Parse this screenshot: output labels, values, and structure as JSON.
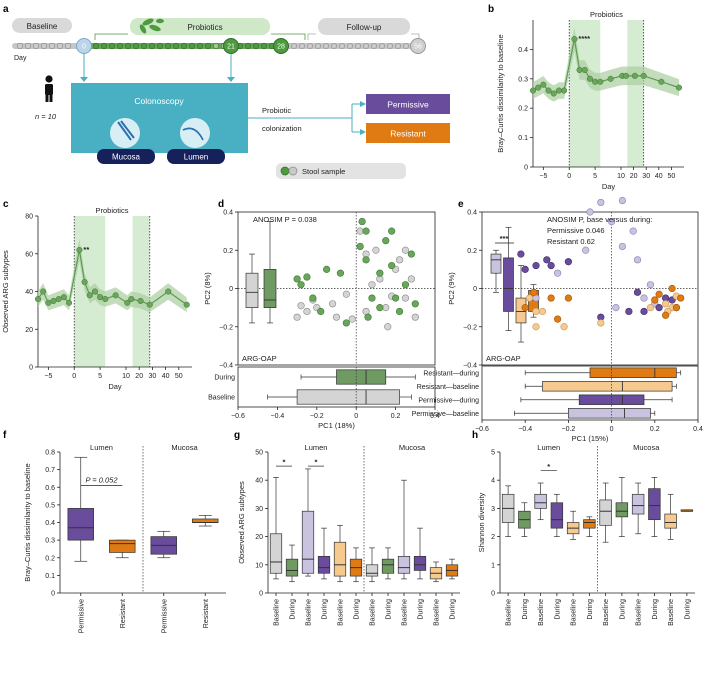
{
  "colors": {
    "baseline_gray": "#d5d5d5",
    "during_green": "#6f9a62",
    "probiotic_green": "#4d9a3f",
    "shade_green": "#d6ecd2",
    "permissive_light": "#c9c3df",
    "permissive": "#6a4c9c",
    "resistant_light": "#f6c98e",
    "resistant": "#e07b14",
    "colonoscopy_teal": "#49b0c3",
    "navy": "#16205b"
  },
  "panel_a": {
    "label": "a",
    "baseline_label": "Baseline",
    "probiotics_label": "Probiotics",
    "followup_label": "Follow-up",
    "day_label": "Day",
    "day_markers": [
      "0",
      "21",
      "28",
      "56"
    ],
    "n_label": "n = 10",
    "colonoscopy_label": "Colonoscopy",
    "mucosa_label": "Mucosa",
    "lumen_label": "Lumen",
    "probiotic_colonization_line1": "Probiotic",
    "probiotic_colonization_line2": "colonization",
    "permissive_label": "Permissive",
    "resistant_label": "Resistant",
    "stool_sample_label": "Stool sample"
  },
  "chart_data": [
    {
      "panel": "b",
      "type": "line",
      "title": "Probiotics",
      "xlabel": "Day",
      "ylabel": "Bray–Curtis dissimilarity to baseline",
      "x_ticks": [
        "−5",
        "0",
        "5",
        "10",
        "20",
        "30",
        "40",
        "50"
      ],
      "y_ticks": [
        "0",
        "0.1",
        "0.2",
        "0.3",
        "0.4"
      ],
      "ylim": [
        0,
        0.5
      ],
      "x": [
        -7,
        -6,
        -5,
        -4,
        -3,
        -2,
        -1,
        1,
        2,
        3,
        4,
        5,
        6,
        8,
        11,
        14,
        21,
        28,
        42,
        56
      ],
      "y": [
        0.26,
        0.27,
        0.28,
        0.26,
        0.25,
        0.26,
        0.26,
        0.435,
        0.33,
        0.33,
        0.3,
        0.29,
        0.29,
        0.3,
        0.31,
        0.31,
        0.31,
        0.31,
        0.29,
        0.27
      ],
      "significance": "****"
    },
    {
      "panel": "c",
      "type": "line",
      "title": "Probiotics",
      "xlabel": "Day",
      "ylabel": "Observed ARG subtypes",
      "x_ticks": [
        "−5",
        "0",
        "5",
        "10",
        "20",
        "30",
        "40",
        "50"
      ],
      "y_ticks": [
        "0",
        "20",
        "40",
        "60",
        "80"
      ],
      "ylim": [
        0,
        80
      ],
      "x": [
        -7,
        -6,
        -5,
        -4,
        -3,
        -2,
        -1,
        1,
        2,
        3,
        4,
        5,
        6,
        8,
        11,
        14,
        21,
        28,
        42,
        56
      ],
      "y": [
        36,
        40,
        34,
        35,
        36,
        37,
        34,
        62,
        45,
        38,
        40,
        37,
        36,
        38,
        34,
        36,
        35,
        33,
        40,
        33
      ],
      "significance": "**"
    },
    {
      "panel": "d",
      "type": "scatter",
      "annotation": "ANOSIM P = 0.038",
      "method_label": "ARG-OAP",
      "xlabel": "PC1 (18%)",
      "ylabel": "PC2 (8%)",
      "x_ticks": [
        "−0.6",
        "−0.4",
        "−0.2",
        "0",
        "0.2",
        "0.4"
      ],
      "y_ticks": [
        "−0.4",
        "−0.2",
        "0",
        "0.2",
        "0.4"
      ],
      "xlim": [
        -0.6,
        0.4
      ],
      "ylim": [
        -0.4,
        0.4
      ],
      "box_categories": [
        "During",
        "Baseline"
      ],
      "series": [
        {
          "name": "Baseline",
          "points": [
            [
              -0.28,
              -0.09
            ],
            [
              -0.25,
              -0.12
            ],
            [
              -0.22,
              -0.06
            ],
            [
              -0.2,
              -0.1
            ],
            [
              -0.12,
              -0.08
            ],
            [
              -0.3,
              -0.15
            ],
            [
              -0.05,
              -0.03
            ],
            [
              0.15,
              -0.1
            ],
            [
              0.18,
              -0.04
            ],
            [
              0.12,
              0.05
            ],
            [
              0.2,
              0.1
            ],
            [
              0.25,
              -0.05
            ],
            [
              0.3,
              -0.15
            ],
            [
              0.05,
              -0.12
            ],
            [
              0.22,
              0.15
            ],
            [
              0.1,
              0.2
            ],
            [
              0.02,
              0.3
            ],
            [
              0.16,
              -0.2
            ],
            [
              -0.02,
              -0.16
            ],
            [
              0.08,
              0.02
            ],
            [
              0.25,
              0.2
            ],
            [
              -0.1,
              -0.15
            ],
            [
              0.28,
              0.05
            ],
            [
              0.05,
              0.18
            ]
          ]
        },
        {
          "name": "During",
          "points": [
            [
              -0.3,
              0.05
            ],
            [
              -0.28,
              0.02
            ],
            [
              -0.25,
              0.06
            ],
            [
              -0.15,
              0.1
            ],
            [
              -0.08,
              0.08
            ],
            [
              -0.22,
              -0.05
            ],
            [
              0.02,
              0.22
            ],
            [
              0.05,
              0.15
            ],
            [
              0.03,
              0.35
            ],
            [
              0.05,
              0.3
            ],
            [
              0.12,
              -0.1
            ],
            [
              0.25,
              0.02
            ],
            [
              0.18,
              0.12
            ],
            [
              0.2,
              -0.05
            ],
            [
              0.3,
              -0.08
            ],
            [
              0.22,
              -0.12
            ],
            [
              0.08,
              -0.05
            ],
            [
              0.15,
              0.25
            ],
            [
              0.28,
              0.18
            ],
            [
              0.06,
              -0.15
            ],
            [
              -0.05,
              -0.18
            ],
            [
              -0.18,
              -0.12
            ],
            [
              0.18,
              0.3
            ],
            [
              0.12,
              0.08
            ]
          ]
        }
      ],
      "boxes_y": [
        {
          "name": "Baseline",
          "min": -0.18,
          "q1": -0.1,
          "median": -0.02,
          "q3": 0.08,
          "max": 0.18
        },
        {
          "name": "During",
          "min": -0.18,
          "q1": -0.1,
          "median": -0.06,
          "q3": 0.1,
          "max": 0.35
        }
      ],
      "boxes_x": [
        {
          "name": "During",
          "min": -0.28,
          "q1": -0.1,
          "median": 0.05,
          "q3": 0.15,
          "max": 0.3
        },
        {
          "name": "Baseline",
          "min": -0.45,
          "q1": -0.3,
          "median": 0.05,
          "q3": 0.22,
          "max": 0.28
        }
      ]
    },
    {
      "panel": "e",
      "type": "scatter",
      "annotation_title": "ANOSIM P, base versus during:",
      "annotation_lines": [
        "Permissive 0.046",
        "Resistant 0.62"
      ],
      "method_label": "ARG-OAP",
      "significance": "***",
      "xlabel": "PC1 (15%)",
      "ylabel": "PC2 (9%)",
      "x_ticks": [
        "−0.6",
        "−0.4",
        "−0.2",
        "0",
        "0.2",
        "0.4"
      ],
      "y_ticks": [
        "−0.4",
        "−0.2",
        "0",
        "0.2",
        "0.4"
      ],
      "xlim": [
        -0.6,
        0.4
      ],
      "ylim": [
        -0.4,
        0.4
      ],
      "box_categories": [
        "Resistant—during",
        "Resistant—baseline",
        "Permissive—during",
        "Permissive—baseline"
      ],
      "series": [
        {
          "name": "Permissive—baseline",
          "points": [
            [
              -0.1,
              0.4
            ],
            [
              -0.05,
              0.45
            ],
            [
              0.05,
              0.46
            ],
            [
              0.0,
              0.35
            ],
            [
              -0.12,
              0.2
            ],
            [
              0.1,
              0.3
            ],
            [
              0.05,
              0.22
            ],
            [
              0.15,
              -0.05
            ],
            [
              0.18,
              0.02
            ],
            [
              0.2,
              -0.08
            ],
            [
              0.02,
              -0.1
            ],
            [
              -0.35,
              -0.05
            ],
            [
              -0.25,
              0.08
            ],
            [
              0.12,
              0.15
            ]
          ]
        },
        {
          "name": "Permissive—during",
          "points": [
            [
              -0.42,
              0.18
            ],
            [
              -0.4,
              0.1
            ],
            [
              -0.35,
              0.12
            ],
            [
              -0.3,
              0.15
            ],
            [
              -0.28,
              0.12
            ],
            [
              -0.2,
              0.14
            ],
            [
              0.12,
              -0.02
            ],
            [
              0.15,
              -0.12
            ],
            [
              0.22,
              -0.1
            ],
            [
              0.25,
              -0.05
            ],
            [
              0.28,
              -0.06
            ],
            [
              0.08,
              -0.12
            ],
            [
              0.3,
              -0.1
            ],
            [
              -0.05,
              -0.15
            ]
          ]
        },
        {
          "name": "Resistant—baseline",
          "points": [
            [
              -0.38,
              -0.05
            ],
            [
              -0.35,
              -0.12
            ],
            [
              -0.32,
              -0.12
            ],
            [
              -0.22,
              -0.2
            ],
            [
              -0.35,
              -0.2
            ],
            [
              0.25,
              -0.08
            ],
            [
              0.28,
              -0.1
            ],
            [
              0.3,
              -0.04
            ],
            [
              -0.05,
              -0.18
            ],
            [
              0.18,
              -0.1
            ],
            [
              0.26,
              -0.12
            ]
          ]
        },
        {
          "name": "Resistant—during",
          "points": [
            [
              -0.4,
              -0.1
            ],
            [
              -0.36,
              -0.02
            ],
            [
              -0.28,
              -0.05
            ],
            [
              -0.2,
              -0.05
            ],
            [
              0.22,
              -0.03
            ],
            [
              0.3,
              -0.1
            ],
            [
              0.32,
              -0.05
            ],
            [
              0.28,
              0.0
            ],
            [
              0.25,
              -0.14
            ],
            [
              -0.25,
              -0.16
            ],
            [
              0.2,
              -0.06
            ]
          ]
        }
      ],
      "boxes_y": [
        {
          "name": "Permissive—baseline",
          "min": -0.02,
          "q1": 0.08,
          "median": 0.15,
          "q3": 0.18,
          "max": 0.2
        },
        {
          "name": "Permissive—during",
          "min": -0.22,
          "q1": -0.12,
          "median": 0.0,
          "q3": 0.16,
          "max": 0.32
        },
        {
          "name": "Resistant—baseline",
          "min": -0.28,
          "q1": -0.18,
          "median": -0.12,
          "q3": -0.05,
          "max": 0.12
        },
        {
          "name": "Resistant—during",
          "min": -0.15,
          "q1": -0.12,
          "median": -0.06,
          "q3": -0.01,
          "max": 0.02
        }
      ],
      "boxes_x": [
        {
          "name": "Resistant—during",
          "min": -0.4,
          "q1": -0.1,
          "median": 0.2,
          "q3": 0.3,
          "max": 0.32
        },
        {
          "name": "Resistant—baseline",
          "min": -0.4,
          "q1": -0.32,
          "median": 0.05,
          "q3": 0.28,
          "max": 0.3
        },
        {
          "name": "Permissive—during",
          "min": -0.42,
          "q1": -0.15,
          "median": 0.05,
          "q3": 0.15,
          "max": 0.28
        },
        {
          "name": "Permissive—baseline",
          "min": -0.45,
          "q1": -0.2,
          "median": 0.06,
          "q3": 0.18,
          "max": 0.2
        }
      ]
    },
    {
      "panel": "f",
      "type": "box",
      "ylabel": "Bray–Curtis dissimilarity to baseline",
      "group_labels": [
        "Lumen",
        "Mucosa"
      ],
      "categories": [
        "Permissive",
        "Resistant",
        "Permissive",
        "Resistant"
      ],
      "y_ticks": [
        "0",
        "0.1",
        "0.2",
        "0.3",
        "0.4",
        "0.5",
        "0.6",
        "0.7",
        "0.8"
      ],
      "ylim": [
        0,
        0.8
      ],
      "annotation": "P = 0.052",
      "boxes": [
        {
          "group": "Lumen",
          "name": "Permissive",
          "min": 0.18,
          "q1": 0.3,
          "median": 0.37,
          "q3": 0.48,
          "max": 0.77
        },
        {
          "group": "Lumen",
          "name": "Resistant",
          "min": 0.2,
          "q1": 0.23,
          "median": 0.28,
          "q3": 0.3,
          "max": 0.3
        },
        {
          "group": "Mucosa",
          "name": "Permissive",
          "min": 0.2,
          "q1": 0.22,
          "median": 0.27,
          "q3": 0.32,
          "max": 0.35
        },
        {
          "group": "Mucosa",
          "name": "Resistant",
          "min": 0.38,
          "q1": 0.4,
          "median": 0.4,
          "q3": 0.42,
          "max": 0.44
        }
      ]
    },
    {
      "panel": "g",
      "type": "box",
      "ylabel": "Observed ARG subtypes",
      "group_labels": [
        "Lumen",
        "Mucosa"
      ],
      "categories": [
        "Baseline",
        "During",
        "Baseline",
        "During",
        "Baseline",
        "During",
        "Baseline",
        "During",
        "Baseline",
        "During",
        "Baseline",
        "During"
      ],
      "y_ticks": [
        "0",
        "10",
        "20",
        "30",
        "40",
        "50"
      ],
      "ylim": [
        0,
        50
      ],
      "significance": [
        "*",
        "*"
      ],
      "boxes": [
        {
          "min": 5,
          "q1": 7,
          "median": 11,
          "q3": 21,
          "max": 41
        },
        {
          "min": 4,
          "q1": 6,
          "median": 8,
          "q3": 12,
          "max": 17
        },
        {
          "min": 6,
          "q1": 7,
          "median": 12,
          "q3": 29,
          "max": 44
        },
        {
          "min": 5,
          "q1": 7,
          "median": 9,
          "q3": 13,
          "max": 23
        },
        {
          "min": 4,
          "q1": 6,
          "median": 10,
          "q3": 18,
          "max": 24
        },
        {
          "min": 4,
          "q1": 6,
          "median": 9,
          "q3": 12,
          "max": 16
        },
        {
          "min": 4,
          "q1": 6,
          "median": 7,
          "q3": 10,
          "max": 16
        },
        {
          "min": 5,
          "q1": 7,
          "median": 10,
          "q3": 12,
          "max": 16
        },
        {
          "min": 5,
          "q1": 7,
          "median": 9,
          "q3": 13,
          "max": 40
        },
        {
          "min": 5,
          "q1": 8,
          "median": 10,
          "q3": 13,
          "max": 23
        },
        {
          "min": 4,
          "q1": 5,
          "median": 7,
          "q3": 9,
          "max": 11
        },
        {
          "min": 5,
          "q1": 6,
          "median": 8,
          "q3": 10,
          "max": 12
        }
      ]
    },
    {
      "panel": "h",
      "type": "box",
      "ylabel": "Shannon diversity",
      "group_labels": [
        "Lumen",
        "Mucosa"
      ],
      "categories": [
        "Baseline",
        "During",
        "Baseline",
        "During",
        "Baseline",
        "During",
        "Baseline",
        "During",
        "Baseline",
        "During",
        "Baseline",
        "During"
      ],
      "y_ticks": [
        "0",
        "1",
        "2",
        "3",
        "4",
        "5"
      ],
      "ylim": [
        0,
        5
      ],
      "significance": [
        "*"
      ],
      "boxes": [
        {
          "min": 2.0,
          "q1": 2.5,
          "median": 3.0,
          "q3": 3.5,
          "max": 3.8
        },
        {
          "min": 2.0,
          "q1": 2.3,
          "median": 2.6,
          "q3": 2.9,
          "max": 3.2
        },
        {
          "min": 2.6,
          "q1": 3.0,
          "median": 3.2,
          "q3": 3.5,
          "max": 3.9
        },
        {
          "min": 2.0,
          "q1": 2.3,
          "median": 2.6,
          "q3": 3.2,
          "max": 3.5
        },
        {
          "min": 1.9,
          "q1": 2.1,
          "median": 2.3,
          "q3": 2.5,
          "max": 2.9
        },
        {
          "min": 2.0,
          "q1": 2.3,
          "median": 2.5,
          "q3": 2.6,
          "max": 2.7
        },
        {
          "min": 1.8,
          "q1": 2.4,
          "median": 2.9,
          "q3": 3.3,
          "max": 3.9
        },
        {
          "min": 2.0,
          "q1": 2.7,
          "median": 2.9,
          "q3": 3.2,
          "max": 4.1
        },
        {
          "min": 2.1,
          "q1": 2.8,
          "median": 3.1,
          "q3": 3.5,
          "max": 3.9
        },
        {
          "min": 2.0,
          "q1": 2.6,
          "median": 3.1,
          "q3": 3.7,
          "max": 4.1
        },
        {
          "min": 1.9,
          "q1": 2.3,
          "median": 2.5,
          "q3": 2.8,
          "max": 3.5
        },
        {
          "min": 2.9,
          "q1": 2.9,
          "median": 2.9,
          "q3": 2.95,
          "max": 2.95
        }
      ]
    }
  ]
}
